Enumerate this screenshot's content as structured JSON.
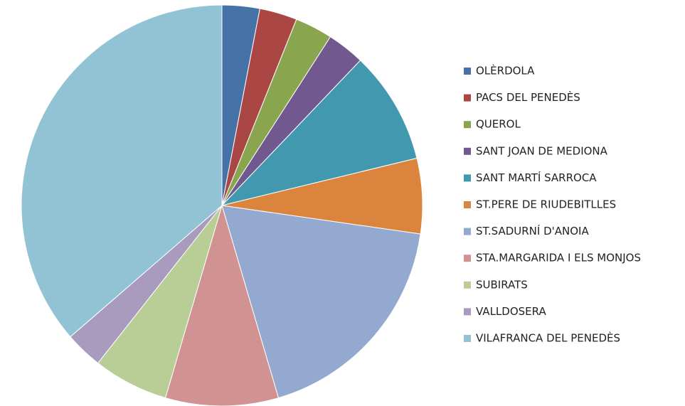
{
  "chart_data": {
    "type": "pie",
    "categories": [
      "OLÈRDOLA",
      "PACS DEL PENEDÈS",
      "QUEROL",
      "SANT JOAN DE MEDIONA",
      "SANT MARTÍ SARROCA",
      "ST.PERE DE RIUDEBITLLES",
      "ST.SADURNÍ D'ANOIA",
      "STA.MARGARIDA I ELS MONJOS",
      "SUBIRATS",
      "VALLDOSERA",
      "VILAFRANCA DEL PENEDÈS"
    ],
    "values": [
      1,
      1,
      1,
      1,
      3,
      2,
      6,
      3,
      2,
      1,
      12
    ],
    "colors": [
      "#4572a7",
      "#aa4643",
      "#89a54e",
      "#71588f",
      "#4198af",
      "#db843d",
      "#93a9cf",
      "#d19392",
      "#b9cd96",
      "#a99bbd",
      "#92c3d4"
    ],
    "legend": "right"
  }
}
